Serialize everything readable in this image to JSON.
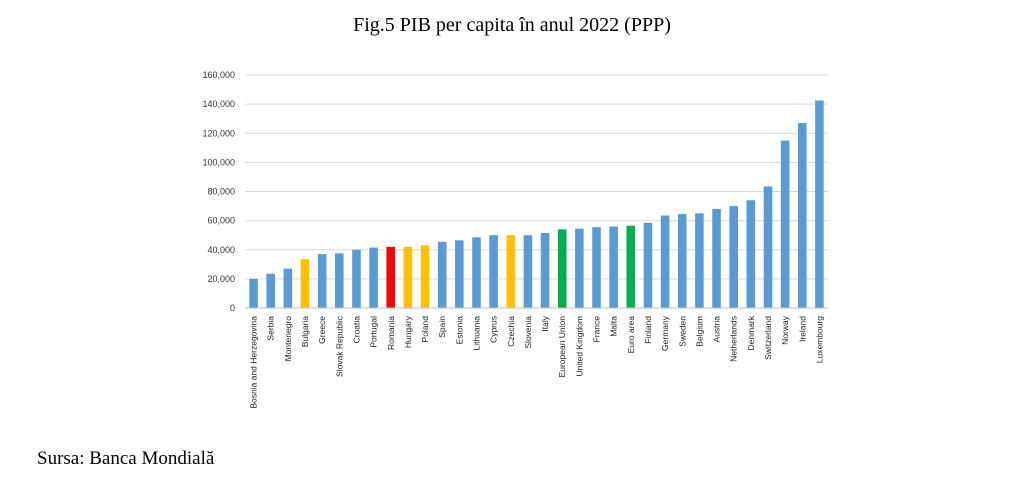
{
  "title": "Fig.5 PIB per capita în anul 2022 (PPP)",
  "source": "Sursa: Banca Mondială",
  "colors": {
    "default": "#5b9bd5",
    "highlight_red": "#ff0000",
    "highlight_yellow": "#ffc000",
    "highlight_green": "#00b050",
    "grid": "#d9d9d9",
    "axis": "#bfbfbf"
  },
  "chart_data": {
    "type": "bar",
    "title": "",
    "xlabel": "",
    "ylabel": "",
    "ylim": [
      0,
      160000
    ],
    "yticks": [
      0,
      20000,
      40000,
      60000,
      80000,
      100000,
      120000,
      140000,
      160000
    ],
    "ytick_labels": [
      "0",
      "20,000",
      "40,000",
      "60,000",
      "80,000",
      "100,000",
      "120,000",
      "140,000",
      "160,000"
    ],
    "grid": true,
    "categories": [
      "Bosnia and Herzegovina",
      "Serbia",
      "Montenegro",
      "Bulgaria",
      "Greece",
      "Slovak Republic",
      "Croatia",
      "Portugal",
      "Romania",
      "Hungary",
      "Poland",
      "Spain",
      "Estonia",
      "Lithuania",
      "Cyprus",
      "Czechia",
      "Slovenia",
      "Italy",
      "European Union",
      "United Kingdom",
      "France",
      "Malta",
      "Euro area",
      "Finland",
      "Germany",
      "Sweden",
      "Belgium",
      "Austria",
      "Netherlands",
      "Denmark",
      "Switzerland",
      "Norway",
      "Ireland",
      "Luxembourg"
    ],
    "values": [
      20000,
      23500,
      27000,
      33500,
      37000,
      37500,
      40000,
      41500,
      42000,
      42000,
      43000,
      45500,
      46500,
      48500,
      50000,
      50000,
      50000,
      51500,
      54000,
      54500,
      55500,
      56000,
      56500,
      58500,
      63500,
      64500,
      65000,
      68000,
      70000,
      74000,
      83500,
      115000,
      127000,
      142500
    ],
    "bar_colors": [
      "default",
      "default",
      "default",
      "highlight_yellow",
      "default",
      "default",
      "default",
      "default",
      "highlight_red",
      "highlight_yellow",
      "highlight_yellow",
      "default",
      "default",
      "default",
      "default",
      "highlight_yellow",
      "default",
      "default",
      "highlight_green",
      "default",
      "default",
      "default",
      "highlight_green",
      "default",
      "default",
      "default",
      "default",
      "default",
      "default",
      "default",
      "default",
      "default",
      "default",
      "default"
    ]
  }
}
